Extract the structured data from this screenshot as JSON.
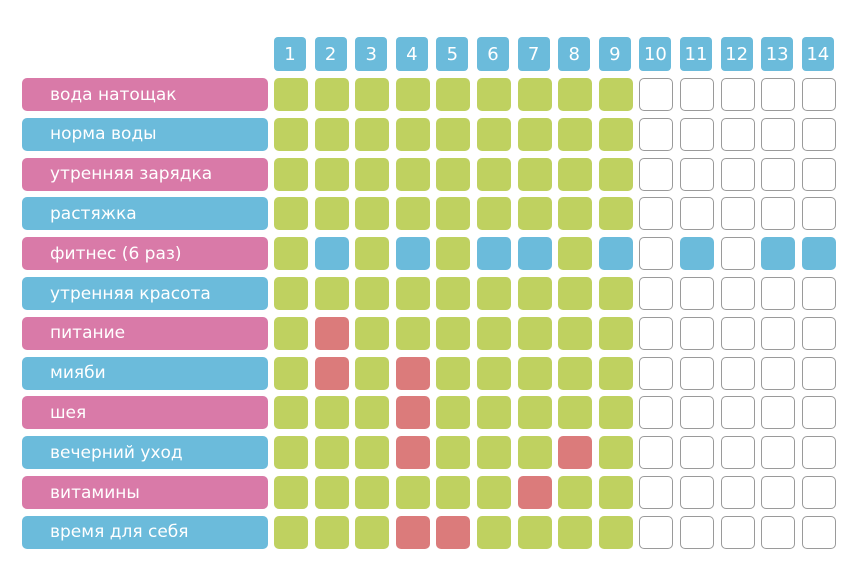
{
  "colors": {
    "pink": "#d97aa8",
    "blue": "#6bbbdb",
    "done": "#bfd160",
    "fitness": "#6bbbdb",
    "missed": "#db7b7b",
    "empty_border": "#9a9a9a"
  },
  "days": [
    "1",
    "2",
    "3",
    "4",
    "5",
    "6",
    "7",
    "8",
    "9",
    "10",
    "11",
    "12",
    "13",
    "14"
  ],
  "habits": [
    {
      "label": "вода натощак",
      "color": "pink",
      "cells": [
        "done",
        "done",
        "done",
        "done",
        "done",
        "done",
        "done",
        "done",
        "done",
        "empty",
        "empty",
        "empty",
        "empty",
        "empty"
      ]
    },
    {
      "label": "норма воды",
      "color": "blue",
      "cells": [
        "done",
        "done",
        "done",
        "done",
        "done",
        "done",
        "done",
        "done",
        "done",
        "empty",
        "empty",
        "empty",
        "empty",
        "empty"
      ]
    },
    {
      "label": "утренняя зарядка",
      "color": "pink",
      "cells": [
        "done",
        "done",
        "done",
        "done",
        "done",
        "done",
        "done",
        "done",
        "done",
        "empty",
        "empty",
        "empty",
        "empty",
        "empty"
      ]
    },
    {
      "label": "растяжка",
      "color": "blue",
      "cells": [
        "done",
        "done",
        "done",
        "done",
        "done",
        "done",
        "done",
        "done",
        "done",
        "empty",
        "empty",
        "empty",
        "empty",
        "empty"
      ]
    },
    {
      "label": "фитнес (6 раз)",
      "color": "pink",
      "cells": [
        "done",
        "fitness",
        "done",
        "fitness",
        "done",
        "fitness",
        "fitness",
        "done",
        "fitness",
        "empty",
        "fitness",
        "empty",
        "fitness",
        "fitness"
      ]
    },
    {
      "label": "утренняя красота",
      "color": "blue",
      "cells": [
        "done",
        "done",
        "done",
        "done",
        "done",
        "done",
        "done",
        "done",
        "done",
        "empty",
        "empty",
        "empty",
        "empty",
        "empty"
      ]
    },
    {
      "label": "питание",
      "color": "pink",
      "cells": [
        "done",
        "missed",
        "done",
        "done",
        "done",
        "done",
        "done",
        "done",
        "done",
        "empty",
        "empty",
        "empty",
        "empty",
        "empty"
      ]
    },
    {
      "label": "мияби",
      "color": "blue",
      "cells": [
        "done",
        "missed",
        "done",
        "missed",
        "done",
        "done",
        "done",
        "done",
        "done",
        "empty",
        "empty",
        "empty",
        "empty",
        "empty"
      ]
    },
    {
      "label": "шея",
      "color": "pink",
      "cells": [
        "done",
        "done",
        "done",
        "missed",
        "done",
        "done",
        "done",
        "done",
        "done",
        "empty",
        "empty",
        "empty",
        "empty",
        "empty"
      ]
    },
    {
      "label": "вечерний уход",
      "color": "blue",
      "cells": [
        "done",
        "done",
        "done",
        "missed",
        "done",
        "done",
        "done",
        "missed",
        "done",
        "empty",
        "empty",
        "empty",
        "empty",
        "empty"
      ]
    },
    {
      "label": "витамины",
      "color": "pink",
      "cells": [
        "done",
        "done",
        "done",
        "done",
        "done",
        "done",
        "missed",
        "done",
        "done",
        "empty",
        "empty",
        "empty",
        "empty",
        "empty"
      ]
    },
    {
      "label": "время для себя",
      "color": "blue",
      "cells": [
        "done",
        "done",
        "done",
        "missed",
        "missed",
        "done",
        "done",
        "done",
        "done",
        "empty",
        "empty",
        "empty",
        "empty",
        "empty"
      ]
    }
  ]
}
